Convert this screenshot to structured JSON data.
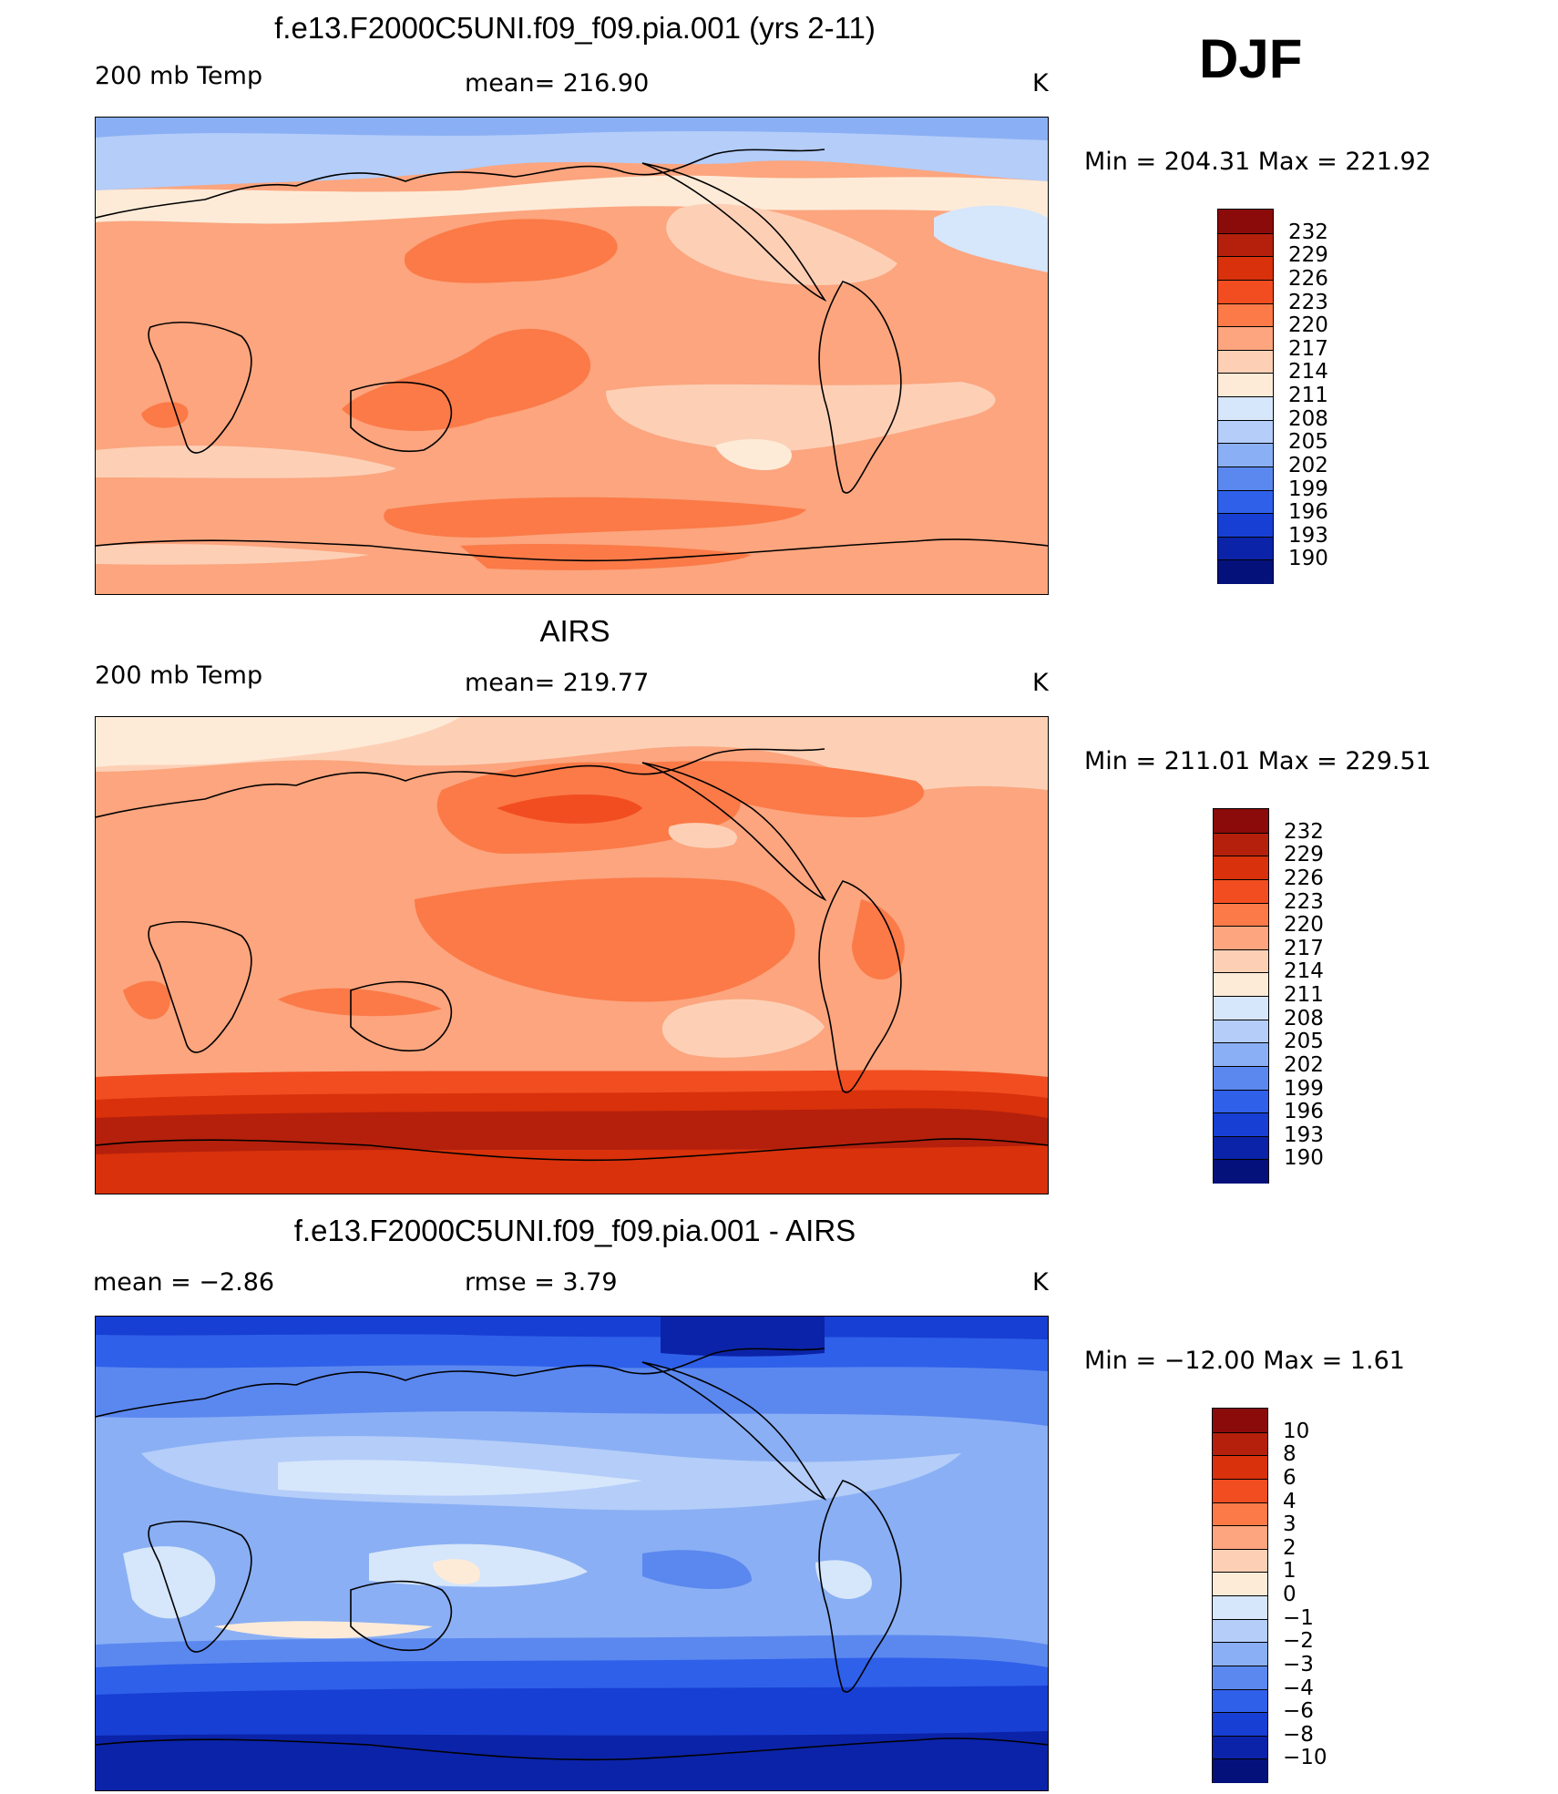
{
  "season": "DJF",
  "panels": [
    {
      "title": "f.e13.F2000C5UNI.f09_f09.pia.001 (yrs 2-11)",
      "left_label": "200 mb Temp",
      "center_label": "mean= 216.90",
      "right_label": "K",
      "minmax": "Min = 204.31 Max = 221.92",
      "colorbar_labels": [
        "232",
        "229",
        "226",
        "223",
        "220",
        "217",
        "214",
        "211",
        "208",
        "205",
        "202",
        "199",
        "196",
        "193",
        "190"
      ]
    },
    {
      "title": "AIRS",
      "left_label": "200 mb Temp",
      "center_label": "mean= 219.77",
      "right_label": "K",
      "minmax": "Min = 211.01 Max = 229.51",
      "colorbar_labels": [
        "232",
        "229",
        "226",
        "223",
        "220",
        "217",
        "214",
        "211",
        "208",
        "205",
        "202",
        "199",
        "196",
        "193",
        "190"
      ]
    },
    {
      "title": "f.e13.F2000C5UNI.f09_f09.pia.001 - AIRS",
      "left_label": "mean =   −2.86",
      "center_label": "rmse =     3.79",
      "right_label": "K",
      "minmax": "Min = −12.00 Max =    1.61",
      "colorbar_labels": [
        "10",
        "8",
        "6",
        "4",
        "3",
        "2",
        "1",
        "0",
        "−1",
        "−2",
        "−3",
        "−4",
        "−6",
        "−8",
        "−10"
      ]
    }
  ],
  "colorbar_colors": [
    "#8b0a0a",
    "#b4200c",
    "#d8310b",
    "#f24d20",
    "#fb7a48",
    "#fca57e",
    "#fdd0b6",
    "#fdebd8",
    "#d6e6fb",
    "#b4cdf9",
    "#8aaff4",
    "#5b88ef",
    "#2f60ea",
    "#173fd3",
    "#0b23a8",
    "#05117a"
  ],
  "colors": {
    "t_high": "#fca57e",
    "t_mid": "#fdd0b6",
    "t_warm": "#fb7a48",
    "t_cool": "#d6e6fb",
    "t_pale": "#fdebd8",
    "airs_hot": "#d8310b",
    "airs_hotter": "#b4200c",
    "d_pale": "#d6e6fb",
    "d_light": "#b4cdf9",
    "d_mid": "#8aaff4",
    "d_strong": "#5b88ef",
    "d_deep": "#2f60ea",
    "d_deeper": "#173fd3",
    "d_deepest": "#0b23a8"
  },
  "chart_data": [
    {
      "type": "heatmap",
      "title": "f.e13.F2000C5UNI.f09_f09.pia.001 (yrs 2-11)",
      "variable": "200 mb Temp",
      "units": "K",
      "mean": 216.9,
      "min": 204.31,
      "max": 221.92,
      "levels": [
        190,
        193,
        196,
        199,
        202,
        205,
        208,
        211,
        214,
        217,
        220,
        223,
        226,
        229,
        232
      ]
    },
    {
      "type": "heatmap",
      "title": "AIRS",
      "variable": "200 mb Temp",
      "units": "K",
      "mean": 219.77,
      "min": 211.01,
      "max": 229.51,
      "levels": [
        190,
        193,
        196,
        199,
        202,
        205,
        208,
        211,
        214,
        217,
        220,
        223,
        226,
        229,
        232
      ]
    },
    {
      "type": "heatmap",
      "title": "f.e13.F2000C5UNI.f09_f09.pia.001 - AIRS",
      "units": "K",
      "mean": -2.86,
      "rmse": 3.79,
      "min": -12.0,
      "max": 1.61,
      "levels": [
        -10,
        -8,
        -6,
        -4,
        -3,
        -2,
        -1,
        0,
        1,
        2,
        3,
        4,
        6,
        8,
        10
      ]
    }
  ]
}
